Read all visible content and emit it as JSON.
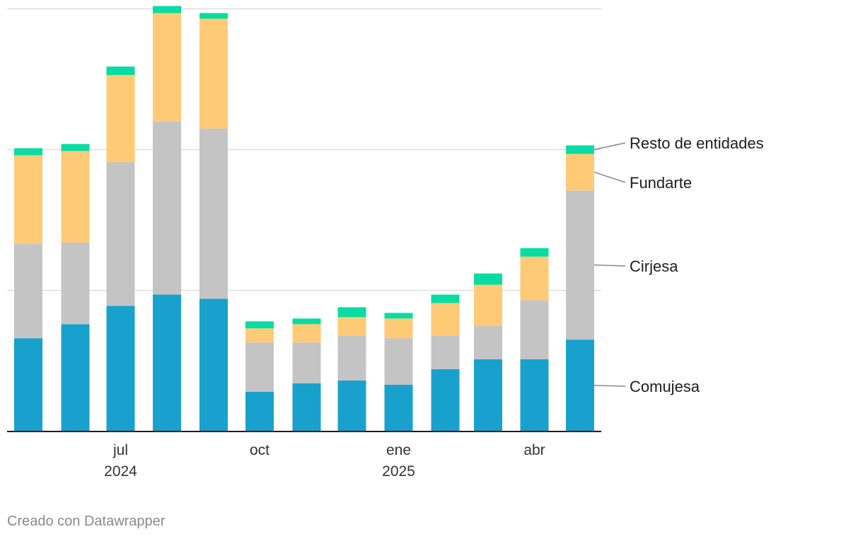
{
  "chart_data": {
    "type": "bar",
    "stacked": true,
    "title": "",
    "xlabel": "",
    "ylabel": "",
    "ylim": [
      0,
      300
    ],
    "gridlines": [
      0,
      100,
      200,
      300
    ],
    "categories": [
      "2024-05",
      "2024-06",
      "2024-07",
      "2024-08",
      "2024-09",
      "2024-10",
      "2024-11",
      "2024-12",
      "2025-01",
      "2025-02",
      "2025-03",
      "2025-04",
      "2025-05"
    ],
    "x_ticks": [
      {
        "category": "2024-07",
        "label": "jul",
        "year": "2024"
      },
      {
        "category": "2024-10",
        "label": "oct",
        "year": ""
      },
      {
        "category": "2025-01",
        "label": "ene",
        "year": "2025"
      },
      {
        "category": "2025-04",
        "label": "abr",
        "year": ""
      }
    ],
    "series": [
      {
        "name": "Comujesa",
        "color": "#18a1cd",
        "values": [
          66,
          76,
          89,
          97,
          94,
          28,
          34,
          36,
          33,
          44,
          51,
          51,
          65
        ]
      },
      {
        "name": "Cirjesa",
        "color": "#c4c4c4",
        "values": [
          67,
          58,
          102,
          123,
          121,
          35,
          29,
          32,
          33,
          24,
          24,
          42,
          106
        ]
      },
      {
        "name": "Fundarte",
        "color": "#ffca76",
        "values": [
          63,
          65,
          62,
          77,
          78,
          10,
          13,
          13,
          14,
          23,
          29,
          31,
          26
        ]
      },
      {
        "name": "Resto de entidades",
        "color": "#09dca3",
        "values": [
          5,
          5,
          6,
          5,
          4,
          5,
          4,
          7,
          4,
          6,
          8,
          6,
          6
        ]
      }
    ]
  },
  "footer": {
    "credit": "Creado con Datawrapper"
  }
}
